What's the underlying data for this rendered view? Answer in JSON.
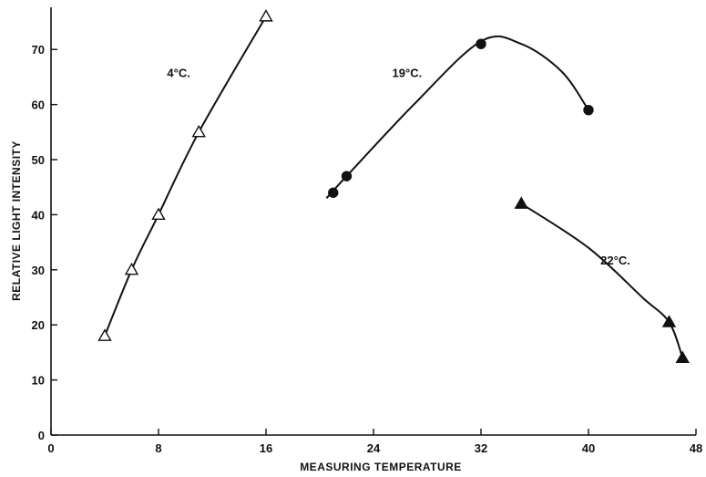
{
  "chart_data": {
    "type": "line",
    "xlabel": "MEASURING TEMPERATURE",
    "ylabel": "RELATIVE LIGHT INTENSITY",
    "xlim": [
      0,
      48
    ],
    "ylim": [
      0,
      76
    ],
    "xticks": [
      0,
      8,
      16,
      24,
      32,
      40,
      48
    ],
    "yticks": [
      0,
      10,
      20,
      30,
      40,
      50,
      60,
      70
    ],
    "xtick_labels": [
      "0",
      "8",
      "16",
      "24",
      "32",
      "40",
      "48"
    ],
    "ytick_labels": [
      "0",
      "10",
      "20",
      "30",
      "40",
      "50",
      "60",
      "70"
    ],
    "grid": false,
    "series": [
      {
        "name": "4°C.",
        "marker": "open-triangle",
        "x": [
          4,
          6,
          8,
          11,
          16
        ],
        "y": [
          18,
          30,
          40,
          55,
          76
        ],
        "curve": [
          [
            4,
            18
          ],
          [
            6,
            30
          ],
          [
            8,
            40
          ],
          [
            11,
            55
          ],
          [
            16,
            76
          ]
        ]
      },
      {
        "name": "19°C.",
        "marker": "filled-circle",
        "x": [
          21,
          22,
          32,
          40
        ],
        "y": [
          44,
          47,
          71,
          59
        ],
        "curve": [
          [
            20.5,
            43
          ],
          [
            22,
            47
          ],
          [
            27,
            60
          ],
          [
            32,
            71.5
          ],
          [
            35,
            71
          ],
          [
            38,
            66
          ],
          [
            40,
            59
          ]
        ]
      },
      {
        "name": "22°C.",
        "marker": "filled-triangle",
        "x": [
          35,
          46,
          47
        ],
        "y": [
          42,
          20.5,
          14
        ],
        "curve": [
          [
            35,
            42
          ],
          [
            40,
            34
          ],
          [
            44,
            25
          ],
          [
            46,
            20.5
          ],
          [
            47,
            14
          ]
        ]
      }
    ],
    "annotations": [
      {
        "text": "4°C.",
        "x": 9.5,
        "y": 65
      },
      {
        "text": "19°C.",
        "x": 26.5,
        "y": 65
      },
      {
        "text": "22°C.",
        "x": 42,
        "y": 31
      }
    ]
  }
}
